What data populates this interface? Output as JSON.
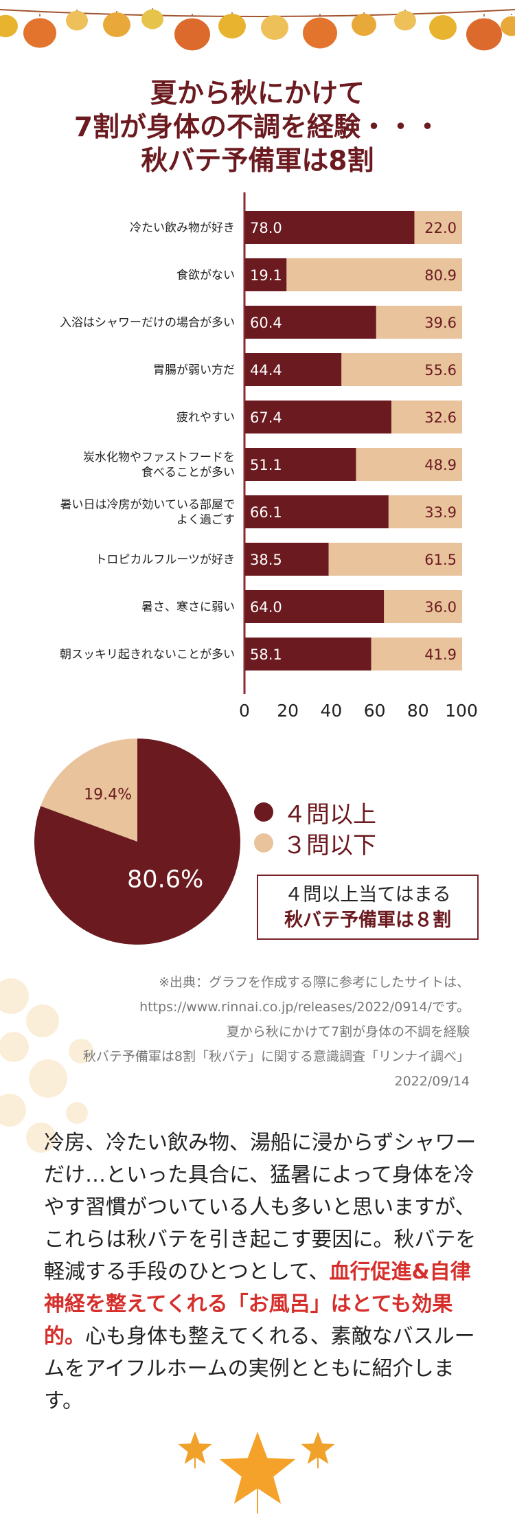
{
  "title": {
    "line1": "夏から秋にかけて",
    "line2": "7割が身体の不調を経験・・・",
    "line3": "秋バテ予備軍は8割"
  },
  "colors": {
    "dark": "#6b1a1f",
    "light": "#e8c39c",
    "highlight": "#d62e2a"
  },
  "chart_data": [
    {
      "type": "bar",
      "stacked": true,
      "orientation": "horizontal",
      "categories": [
        "冷たい飲み物が好き",
        "食欲がない",
        "入浴はシャワーだけの場合が多い",
        "胃腸が弱い方だ",
        "疲れやすい",
        "炭水化物やファストフードを\n食べることが多い",
        "暑い日は冷房が効いている部屋で\nよく過ごす",
        "トロピカルフルーツが好き",
        "暑さ、寒さに弱い",
        "朝スッキリ起きれないことが多い"
      ],
      "series": [
        {
          "values": [
            78.0,
            19.1,
            60.4,
            44.4,
            67.4,
            51.1,
            66.1,
            38.5,
            64.0,
            58.1
          ],
          "labels": [
            "78.0",
            "19.1",
            "60.4",
            "44.4",
            "67.4",
            "51.1",
            "66.1",
            "38.5",
            "64.0",
            "58.1"
          ]
        },
        {
          "values": [
            22.0,
            80.9,
            39.6,
            55.6,
            32.6,
            48.9,
            33.9,
            61.5,
            36.0,
            41.9
          ],
          "labels": [
            "22.0",
            "80.9",
            "39.6",
            "55.6",
            "32.6",
            "48.9",
            "33.9",
            "61.5",
            "36.0",
            "41.9"
          ]
        }
      ],
      "xlim": [
        0,
        100
      ],
      "xticks": [
        "0",
        "20",
        "40",
        "60",
        "80",
        "100"
      ],
      "grid": false
    },
    {
      "type": "pie",
      "slices": [
        {
          "name": "４問以上",
          "value": 80.6,
          "label": "80.6%"
        },
        {
          "name": "３問以下",
          "value": 19.4,
          "label": "19.4%"
        }
      ],
      "legend": [
        "●４問以上",
        "●３問以下"
      ]
    }
  ],
  "callout": {
    "line1": "４問以上当てはまる",
    "line2": "秋バテ予備軍は８割"
  },
  "source": {
    "lines": [
      "※出典：グラフを作成する際に参考にしたサイトは、",
      "https://www.rinnai.co.jp/releases/2022/0914/です。",
      "夏から秋にかけて7割が身体の不調を経験",
      "秋バテ予備軍は8割「秋バテ」に関する意識調査「リンナイ調べ」",
      "2022/09/14"
    ]
  },
  "body": {
    "part1": "冷房、冷たい飲み物、湯船に浸からずシャワーだけ…といった具合に、猛暑によって身体を冷やす習慣がついている人も多いと思いますが、これらは秋バテを引き起こす要因に。秋バテを軽減する手段のひとつとして、",
    "highlight": "血行促進&自律神経を整えてくれる「お風呂」はとても効果的。",
    "part2": "心も身体も整えてくれる、素敵なバスルームをアイフルホームの実例とともに紹介します。"
  }
}
